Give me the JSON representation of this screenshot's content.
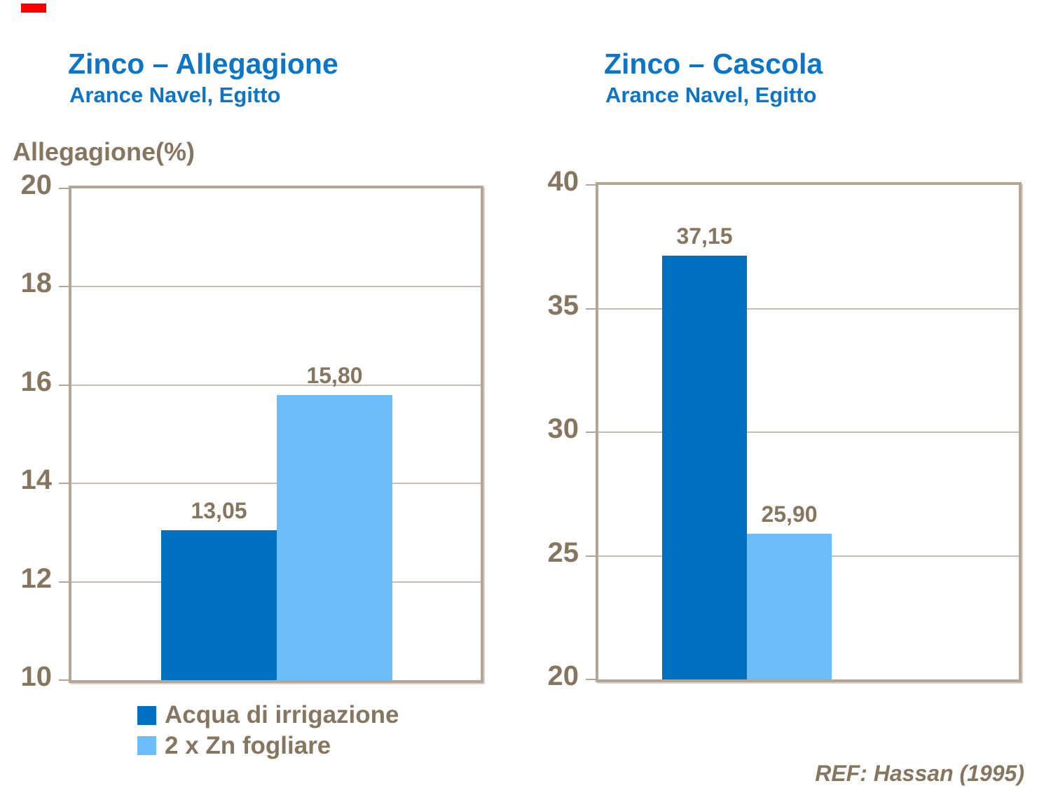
{
  "page": {
    "background": "#ffffff"
  },
  "decorations": {
    "corner_mark_color": "#fe0000"
  },
  "colors": {
    "title_blue": "#0d75c5",
    "text_brown": "#86765f",
    "series_dark_blue": "#0071c1",
    "series_light_blue": "#6cbef8",
    "plot_border": "#b3a697",
    "gridline": "#c9bdb1"
  },
  "chart_data": [
    {
      "type": "bar",
      "title": "Zinco – Allegagione",
      "subtitle": "Arance Navel, Egitto",
      "ylabel": "Allegagione(%)",
      "xlabel": "",
      "categories": [
        "Acqua di irrigazione",
        "2 x Zn fogliare"
      ],
      "series": [
        {
          "name": "Acqua di irrigazione",
          "values": [
            13.05
          ],
          "value_labels": [
            "13,05"
          ],
          "color": "#0071c1"
        },
        {
          "name": "2 x Zn fogliare",
          "values": [
            15.8
          ],
          "value_labels": [
            "15,80"
          ],
          "color": "#6cbef8"
        }
      ],
      "ylim": [
        10,
        20
      ],
      "yticks": [
        20,
        18,
        16,
        14,
        12,
        10
      ],
      "grid": true,
      "legend_position": "below"
    },
    {
      "type": "bar",
      "title": "Zinco – Cascola",
      "subtitle": "Arance Navel, Egitto",
      "ylabel": "",
      "xlabel": "",
      "categories": [
        "Acqua di irrigazione",
        "2 x Zn fogliare"
      ],
      "series": [
        {
          "name": "Acqua di irrigazione",
          "values": [
            37.15
          ],
          "value_labels": [
            "37,15"
          ],
          "color": "#0071c1"
        },
        {
          "name": "2 x Zn fogliare",
          "values": [
            25.9
          ],
          "value_labels": [
            "25,90"
          ],
          "color": "#6cbef8"
        }
      ],
      "ylim": [
        20,
        40
      ],
      "yticks": [
        40,
        35,
        30,
        25,
        20
      ],
      "grid": true,
      "legend_position": "none"
    }
  ],
  "footer": {
    "ref_label": "REF: Hassan (1995)"
  }
}
